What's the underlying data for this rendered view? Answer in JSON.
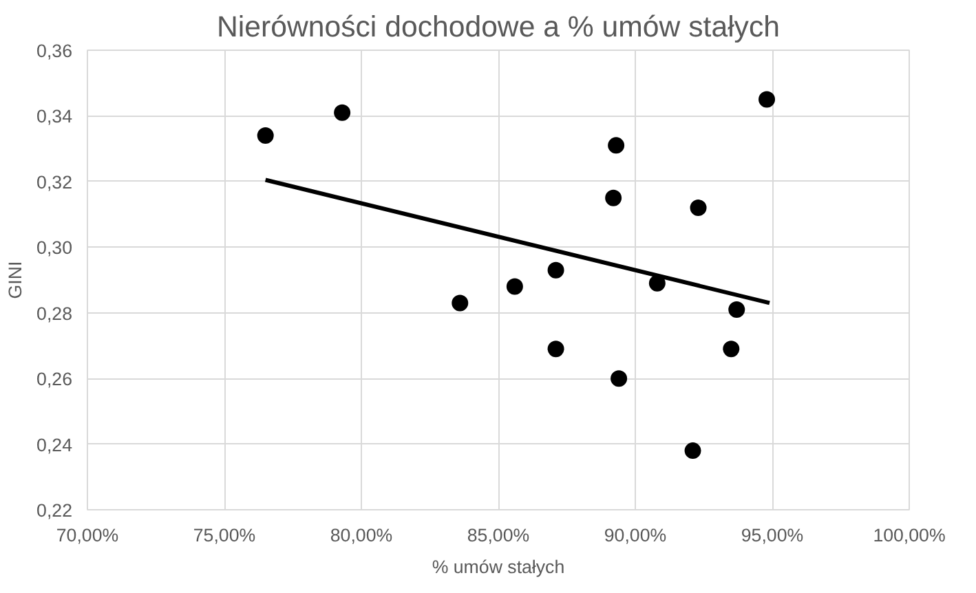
{
  "chart_data": {
    "type": "scatter",
    "title": "Nierówności dochodowe a % umów stałych",
    "xlabel": "% umów stałych",
    "ylabel": "GINI",
    "xlim": [
      70,
      100
    ],
    "ylim": [
      0.22,
      0.36
    ],
    "xticks": [
      {
        "value": 70,
        "label": "70,00%"
      },
      {
        "value": 75,
        "label": "75,00%"
      },
      {
        "value": 80,
        "label": "80,00%"
      },
      {
        "value": 85,
        "label": "85,00%"
      },
      {
        "value": 90,
        "label": "90,00%"
      },
      {
        "value": 95,
        "label": "95,00%"
      },
      {
        "value": 100,
        "label": "100,00%"
      }
    ],
    "yticks": [
      {
        "value": 0.22,
        "label": "0,22"
      },
      {
        "value": 0.24,
        "label": "0,24"
      },
      {
        "value": 0.26,
        "label": "0,26"
      },
      {
        "value": 0.28,
        "label": "0,28"
      },
      {
        "value": 0.3,
        "label": "0,30"
      },
      {
        "value": 0.32,
        "label": "0,32"
      },
      {
        "value": 0.34,
        "label": "0,34"
      },
      {
        "value": 0.36,
        "label": "0,36"
      }
    ],
    "grid": true,
    "series": [
      {
        "marker": "circle",
        "color": "#000000",
        "x": [
          76.5,
          79.3,
          83.6,
          85.6,
          87.1,
          87.1,
          89.3,
          89.2,
          89.4,
          90.8,
          92.3,
          92.1,
          93.5,
          93.7,
          94.8
        ],
        "values": [
          0.334,
          0.341,
          0.283,
          0.288,
          0.293,
          0.269,
          0.331,
          0.315,
          0.26,
          0.289,
          0.312,
          0.238,
          0.269,
          0.281,
          0.345
        ]
      },
      {
        "type": "line",
        "color": "#000000",
        "x": [
          76.5,
          94.9
        ],
        "values": [
          0.3205,
          0.283
        ]
      }
    ]
  }
}
